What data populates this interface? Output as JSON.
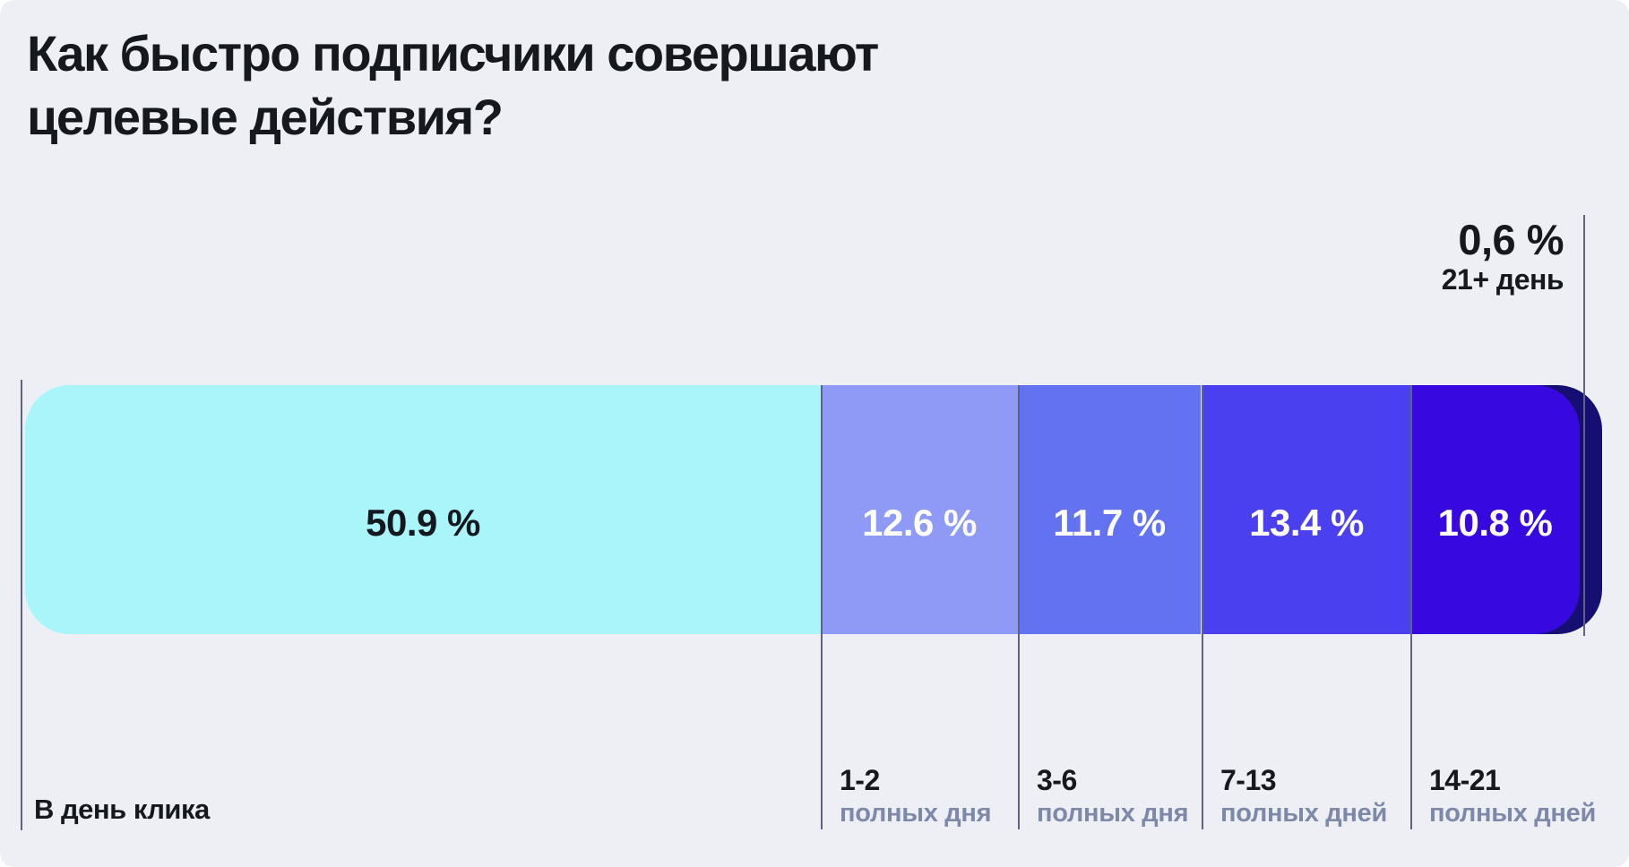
{
  "page": {
    "background_color": "#edeff5",
    "text_color": "#15181e",
    "separator_color": "#5d6380",
    "muted_label_color": "#7e89a9"
  },
  "title": {
    "line1": "Как быстро подписчики совершают",
    "line2": "целевые действия?"
  },
  "outside_label": {
    "value": "0,6 %",
    "category": "21+ день"
  },
  "chart_data": {
    "type": "bar",
    "subtype": "horizontal-stacked-single-bar",
    "title": "Как быстро подписчики совершают целевые действия?",
    "unit": "%",
    "total": 100,
    "legend_position": "none",
    "grid": false,
    "segments": [
      {
        "category": "В день клика",
        "category_sub": "",
        "value": 50.9,
        "display": "50.9 %",
        "color": "#a9f5fa",
        "text_color": "#15181e",
        "outside": false
      },
      {
        "category": "1-2",
        "category_sub": "полных дня",
        "value": 12.6,
        "display": "12.6 %",
        "color": "#8e9af5",
        "text_color": "#ffffff",
        "outside": false
      },
      {
        "category": "3-6",
        "category_sub": "полных дня",
        "value": 11.7,
        "display": "11.7 %",
        "color": "#6372f0",
        "text_color": "#ffffff",
        "outside": false
      },
      {
        "category": "7-13",
        "category_sub": "полных дней",
        "value": 13.4,
        "display": "13.4 %",
        "color": "#4a40f0",
        "text_color": "#ffffff",
        "outside": false
      },
      {
        "category": "14-21",
        "category_sub": "полных дней",
        "value": 10.8,
        "display": "10.8 %",
        "color": "#3708e0",
        "text_color": "#ffffff",
        "outside": false
      },
      {
        "category": "21+ день",
        "category_sub": "",
        "value": 0.6,
        "display": "0,6 %",
        "color": "#150e73",
        "text_color": "#15181e",
        "outside": true
      }
    ]
  }
}
